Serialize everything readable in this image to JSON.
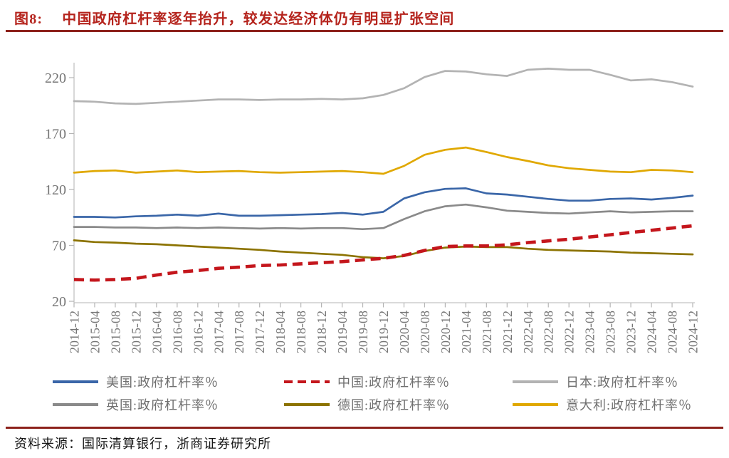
{
  "figure": {
    "label": "图8:",
    "title": "中国政府杠杆率逐年抬升，较发达经济体仍有明显扩张空间",
    "source_label": "资料来源：",
    "source_text": "国际清算银行，浙商证券研究所"
  },
  "colors": {
    "title_red": "#b5241d",
    "rule_red": "#8d221c",
    "axis_gray": "#c4c4c4",
    "tick_text_gray": "#757575",
    "legend_text_gray": "#6f6f6f",
    "source_black": "#151515"
  },
  "chart_data": {
    "type": "line",
    "title": "",
    "xlabel": "",
    "ylabel": "",
    "ylim": [
      20,
      220
    ],
    "yticks": [
      20,
      70,
      120,
      170,
      220
    ],
    "grid": false,
    "legend_position": "bottom",
    "categories": [
      "2014-12",
      "2015-04",
      "2015-08",
      "2015-12",
      "2016-04",
      "2016-08",
      "2016-12",
      "2017-04",
      "2017-08",
      "2017-12",
      "2018-04",
      "2018-08",
      "2018-12",
      "2019-04",
      "2019-08",
      "2019-12",
      "2020-04",
      "2020-08",
      "2020-12",
      "2021-04",
      "2021-08",
      "2021-12",
      "2022-04",
      "2022-08",
      "2022-12",
      "2023-04",
      "2023-08",
      "2023-12",
      "2024-04",
      "2024-08",
      "2024-12"
    ],
    "series": [
      {
        "name": "美国:政府杠杆率％",
        "color": "#3a66a8",
        "dash": false,
        "values": [
          95.5,
          95.5,
          95,
          96,
          96.5,
          97.5,
          96.5,
          98.5,
          96.5,
          96.5,
          97,
          97.5,
          98,
          99,
          97.5,
          100,
          112,
          117.5,
          120.5,
          121,
          116.5,
          115.5,
          113.5,
          111.5,
          110,
          110,
          111.5,
          112,
          111,
          112.5,
          114.5
        ]
      },
      {
        "name": "中国:政府杠杆率％",
        "color": "#c4161c",
        "dash": true,
        "values": [
          39.5,
          39,
          39.5,
          40.5,
          43.5,
          46,
          47.5,
          49.5,
          50.5,
          52,
          52.5,
          53.5,
          54.5,
          55.5,
          57,
          58.5,
          61,
          65.5,
          69,
          69.5,
          69.5,
          70.5,
          72.5,
          74,
          75.5,
          77.5,
          79.5,
          81.5,
          83.5,
          85.5,
          87.5
        ]
      },
      {
        "name": "日本:政府杠杆率％",
        "color": "#b3b3b3",
        "dash": false,
        "values": [
          199,
          198.5,
          197,
          196.5,
          197.5,
          198.5,
          199.5,
          200.5,
          200.5,
          200,
          200.5,
          200.5,
          201,
          200.5,
          201.5,
          204.5,
          210.5,
          220.5,
          226,
          225.5,
          223,
          221.5,
          227,
          228,
          227,
          227,
          222.5,
          217.5,
          218.5,
          216,
          212
        ]
      },
      {
        "name": "英国:政府杠杆率％",
        "color": "#8a8a8a",
        "dash": false,
        "values": [
          86.5,
          86.5,
          86,
          86,
          85.5,
          86,
          85.5,
          86,
          85.5,
          85,
          85.5,
          85,
          85.5,
          85.5,
          84.5,
          85.5,
          93.5,
          100.5,
          105,
          106.5,
          104,
          101,
          100,
          99,
          98.5,
          99.5,
          100.5,
          99.5,
          100,
          100.5,
          100.5
        ]
      },
      {
        "name": "德国:政府杠杆率％",
        "color": "#8c7300",
        "dash": false,
        "values": [
          74.5,
          73,
          72.5,
          71.5,
          71,
          70,
          69,
          68,
          67,
          66,
          64.5,
          63.5,
          62.5,
          61.5,
          59.5,
          58.5,
          60.5,
          65,
          68,
          69,
          68.5,
          68.5,
          67,
          66,
          65.5,
          65,
          64.5,
          63.5,
          63,
          62.5,
          62
        ]
      },
      {
        "name": "意大利:政府杠杆率％",
        "color": "#e0a800",
        "dash": false,
        "values": [
          135,
          136.5,
          137,
          135,
          136,
          137,
          135.5,
          136,
          136.5,
          135.5,
          135,
          135.5,
          136,
          136.5,
          135.5,
          134,
          141,
          151,
          155.5,
          157.5,
          153.5,
          149,
          145.5,
          141.5,
          139,
          137.5,
          136,
          135.5,
          137.5,
          137,
          135.5
        ]
      }
    ]
  }
}
